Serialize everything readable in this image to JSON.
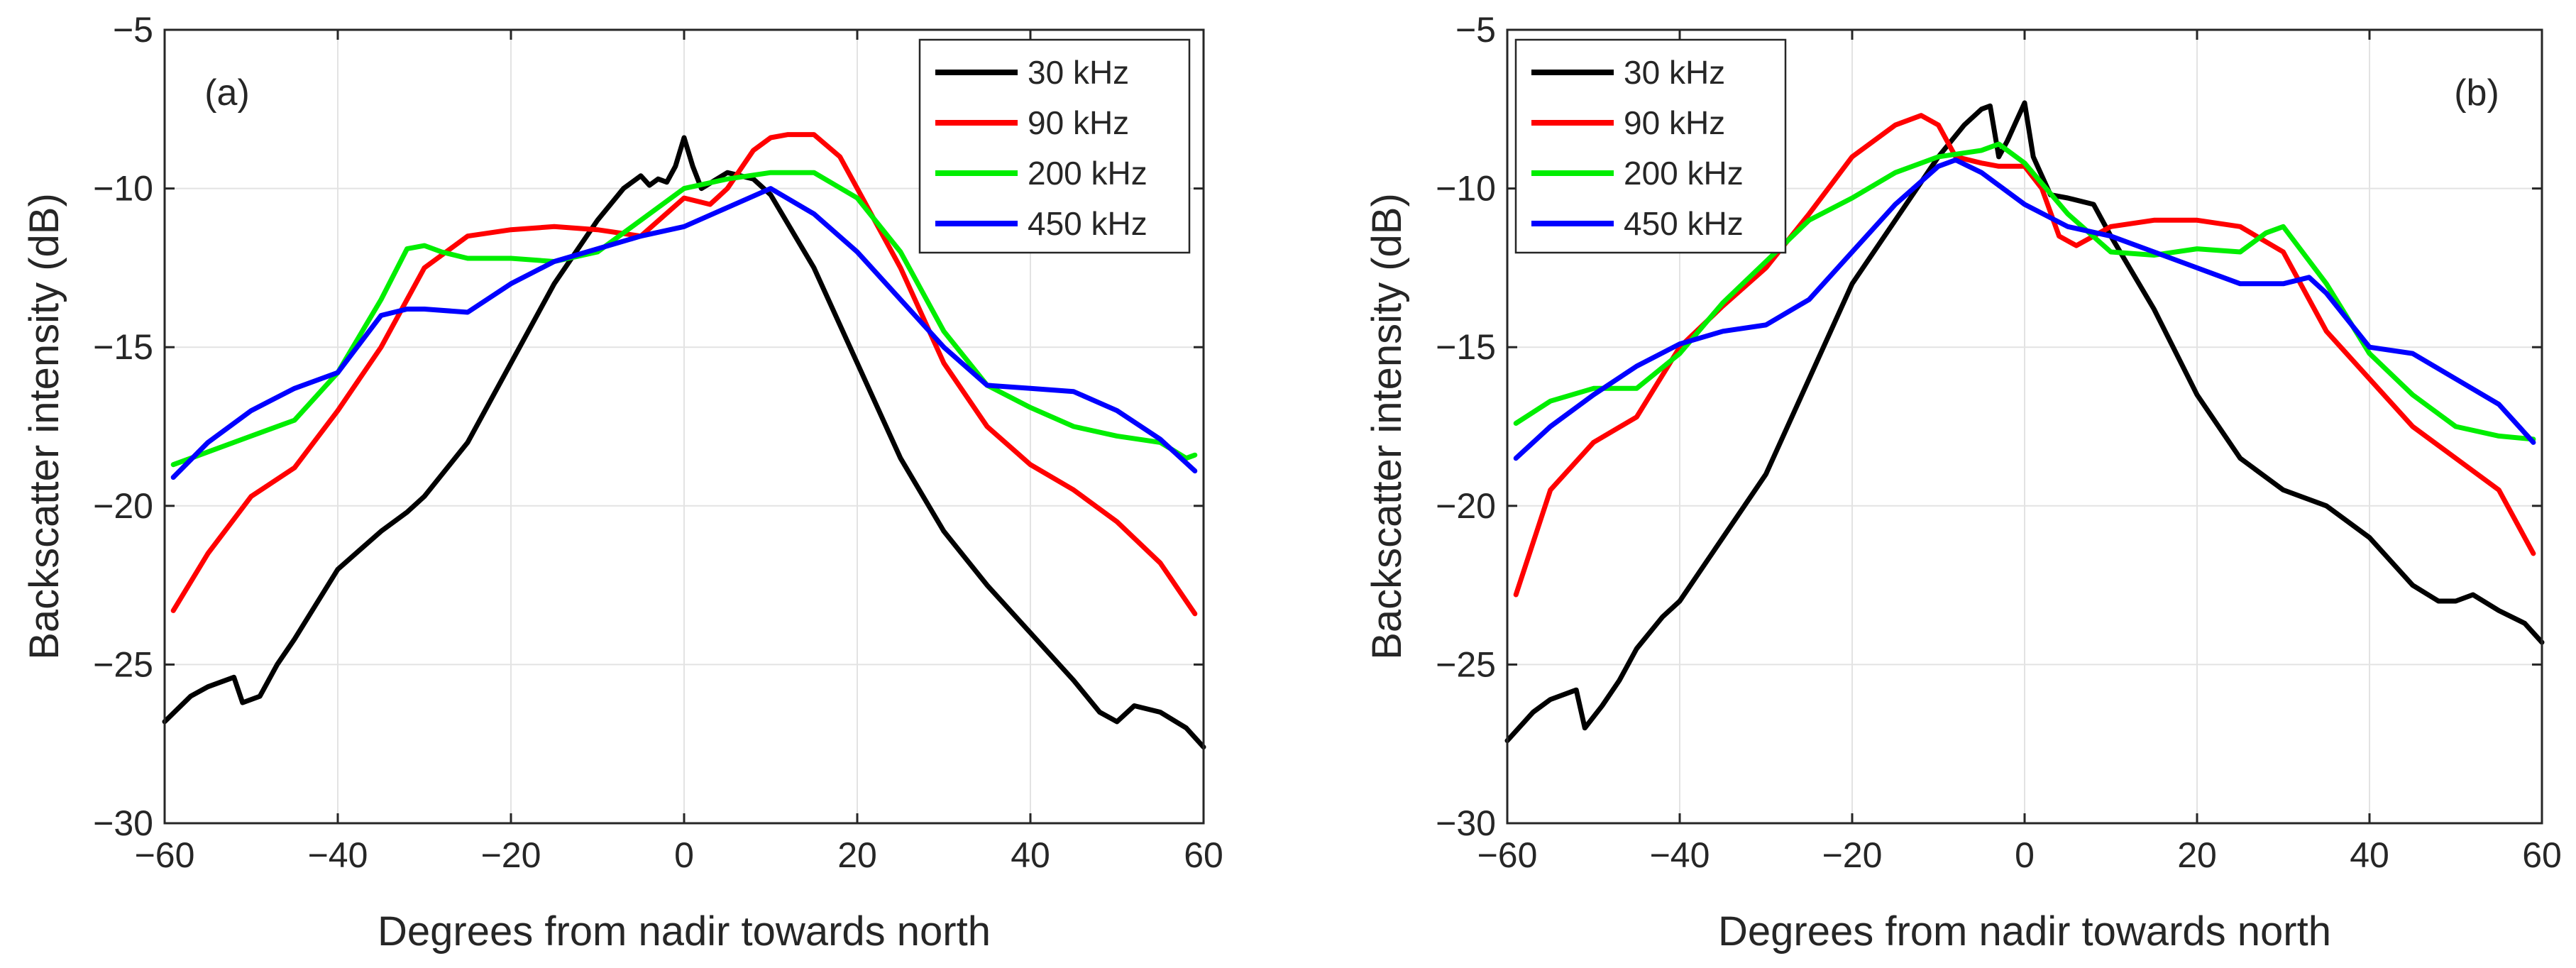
{
  "chart_data": [
    {
      "type": "line",
      "panel_label": "(a)",
      "xlabel": "Degrees from nadir towards north",
      "ylabel": "Backscatter intensity (dB)",
      "xlim": [
        -60,
        60
      ],
      "ylim": [
        -30,
        -5
      ],
      "xticks": [
        -60,
        -40,
        -20,
        0,
        20,
        40,
        60
      ],
      "yticks": [
        -30,
        -25,
        -20,
        -15,
        -10,
        -5
      ],
      "grid": true,
      "legend_position": "top-right",
      "series": [
        {
          "name": "30 kHz",
          "color": "#000000",
          "x": [
            -60,
            -57,
            -55,
            -52,
            -51,
            -49,
            -47,
            -45,
            -40,
            -35,
            -32,
            -30,
            -25,
            -20,
            -15,
            -10,
            -7,
            -5,
            -4,
            -3,
            -2,
            -1,
            0,
            1,
            2,
            5,
            8,
            10,
            15,
            20,
            25,
            30,
            35,
            40,
            45,
            48,
            50,
            52,
            55,
            58,
            60
          ],
          "y": [
            -26.8,
            -26.0,
            -25.7,
            -25.4,
            -26.2,
            -26.0,
            -25.0,
            -24.2,
            -22.0,
            -20.8,
            -20.2,
            -19.7,
            -18.0,
            -15.5,
            -13.0,
            -11.0,
            -10.0,
            -9.6,
            -9.9,
            -9.7,
            -9.8,
            -9.3,
            -8.4,
            -9.3,
            -10.0,
            -9.5,
            -9.7,
            -10.2,
            -12.5,
            -15.5,
            -18.5,
            -20.8,
            -22.5,
            -24.0,
            -25.5,
            -26.5,
            -26.8,
            -26.3,
            -26.5,
            -27.0,
            -27.6
          ]
        },
        {
          "name": "90 kHz",
          "color": "#ff0000",
          "x": [
            -59,
            -55,
            -50,
            -45,
            -40,
            -35,
            -30,
            -25,
            -20,
            -15,
            -10,
            -5,
            0,
            3,
            5,
            8,
            10,
            12,
            15,
            18,
            20,
            25,
            30,
            35,
            40,
            45,
            50,
            55,
            59
          ],
          "y": [
            -23.3,
            -21.5,
            -19.7,
            -18.8,
            -17.0,
            -15.0,
            -12.5,
            -11.5,
            -11.3,
            -11.2,
            -11.3,
            -11.5,
            -10.3,
            -10.5,
            -10.0,
            -8.8,
            -8.4,
            -8.3,
            -8.3,
            -9.0,
            -10.0,
            -12.5,
            -15.5,
            -17.5,
            -18.7,
            -19.5,
            -20.5,
            -21.8,
            -23.4
          ]
        },
        {
          "name": "200 kHz",
          "color": "#00ee00",
          "x": [
            -59,
            -55,
            -50,
            -45,
            -40,
            -35,
            -32,
            -30,
            -28,
            -25,
            -20,
            -15,
            -10,
            -5,
            0,
            5,
            10,
            15,
            20,
            25,
            30,
            35,
            40,
            45,
            50,
            55,
            58,
            59
          ],
          "y": [
            -18.7,
            -18.3,
            -17.8,
            -17.3,
            -15.8,
            -13.5,
            -11.9,
            -11.8,
            -12.0,
            -12.2,
            -12.2,
            -12.3,
            -12.0,
            -11.0,
            -10.0,
            -9.7,
            -9.5,
            -9.5,
            -10.3,
            -12.0,
            -14.5,
            -16.2,
            -16.9,
            -17.5,
            -17.8,
            -18.0,
            -18.5,
            -18.4
          ]
        },
        {
          "name": "450 kHz",
          "color": "#0000ff",
          "x": [
            -59,
            -55,
            -50,
            -45,
            -40,
            -35,
            -32,
            -30,
            -25,
            -20,
            -15,
            -10,
            -5,
            0,
            5,
            10,
            15,
            20,
            25,
            30,
            35,
            40,
            45,
            50,
            55,
            59
          ],
          "y": [
            -19.1,
            -18.0,
            -17.0,
            -16.3,
            -15.8,
            -14.0,
            -13.8,
            -13.8,
            -13.9,
            -13.0,
            -12.3,
            -11.9,
            -11.5,
            -11.2,
            -10.6,
            -10.0,
            -10.8,
            -12.0,
            -13.5,
            -15.0,
            -16.2,
            -16.3,
            -16.4,
            -17.0,
            -17.9,
            -18.9
          ]
        }
      ]
    },
    {
      "type": "line",
      "panel_label": "(b)",
      "xlabel": "Degrees from nadir towards north",
      "ylabel": "Backscatter intensity (dB)",
      "xlim": [
        -60,
        60
      ],
      "ylim": [
        -30,
        -5
      ],
      "xticks": [
        -60,
        -40,
        -20,
        0,
        20,
        40,
        60
      ],
      "yticks": [
        -30,
        -25,
        -20,
        -15,
        -10,
        -5
      ],
      "grid": true,
      "legend_position": "top-left",
      "series": [
        {
          "name": "30 kHz",
          "color": "#000000",
          "x": [
            -60,
            -57,
            -55,
            -52,
            -51,
            -49,
            -47,
            -45,
            -42,
            -40,
            -35,
            -30,
            -25,
            -20,
            -15,
            -10,
            -7,
            -5,
            -4,
            -3,
            -2,
            -1,
            0,
            1,
            3,
            5,
            8,
            10,
            15,
            20,
            25,
            30,
            35,
            40,
            45,
            48,
            50,
            52,
            55,
            58,
            60
          ],
          "y": [
            -27.4,
            -26.5,
            -26.1,
            -25.8,
            -27.0,
            -26.3,
            -25.5,
            -24.5,
            -23.5,
            -23.0,
            -21.0,
            -19.0,
            -16.0,
            -13.0,
            -11.0,
            -9.0,
            -8.0,
            -7.5,
            -7.4,
            -9.0,
            -8.5,
            -7.9,
            -7.3,
            -9.0,
            -10.2,
            -10.3,
            -10.5,
            -11.5,
            -13.8,
            -16.5,
            -18.5,
            -19.5,
            -20.0,
            -21.0,
            -22.5,
            -23.0,
            -23.0,
            -22.8,
            -23.3,
            -23.7,
            -24.3
          ]
        },
        {
          "name": "90 kHz",
          "color": "#ff0000",
          "x": [
            -59,
            -55,
            -50,
            -45,
            -40,
            -35,
            -30,
            -25,
            -20,
            -15,
            -12,
            -10,
            -8,
            -5,
            -3,
            0,
            2,
            4,
            6,
            8,
            10,
            15,
            20,
            25,
            30,
            35,
            40,
            45,
            50,
            55,
            59
          ],
          "y": [
            -22.8,
            -19.5,
            -18.0,
            -17.2,
            -15.0,
            -13.7,
            -12.5,
            -10.8,
            -9.0,
            -8.0,
            -7.7,
            -8.0,
            -9.0,
            -9.2,
            -9.3,
            -9.3,
            -10.0,
            -11.5,
            -11.8,
            -11.5,
            -11.2,
            -11.0,
            -11.0,
            -11.2,
            -12.0,
            -14.5,
            -16.0,
            -17.5,
            -18.5,
            -19.5,
            -21.5
          ]
        },
        {
          "name": "200 kHz",
          "color": "#00ee00",
          "x": [
            -59,
            -55,
            -50,
            -45,
            -40,
            -35,
            -30,
            -25,
            -20,
            -15,
            -10,
            -5,
            -3,
            0,
            5,
            10,
            15,
            20,
            25,
            28,
            30,
            35,
            40,
            45,
            50,
            55,
            59
          ],
          "y": [
            -17.4,
            -16.7,
            -16.3,
            -16.3,
            -15.2,
            -13.6,
            -12.3,
            -11.0,
            -10.3,
            -9.5,
            -9.0,
            -8.8,
            -8.6,
            -9.2,
            -10.8,
            -12.0,
            -12.1,
            -11.9,
            -12.0,
            -11.4,
            -11.2,
            -13.0,
            -15.2,
            -16.5,
            -17.5,
            -17.8,
            -17.9
          ]
        },
        {
          "name": "450 kHz",
          "color": "#0000ff",
          "x": [
            -59,
            -55,
            -50,
            -45,
            -40,
            -35,
            -30,
            -25,
            -20,
            -15,
            -10,
            -8,
            -5,
            0,
            5,
            10,
            15,
            20,
            25,
            30,
            33,
            35,
            40,
            45,
            50,
            55,
            59
          ],
          "y": [
            -18.5,
            -17.5,
            -16.5,
            -15.6,
            -14.9,
            -14.5,
            -14.3,
            -13.5,
            -12.0,
            -10.5,
            -9.3,
            -9.1,
            -9.5,
            -10.5,
            -11.2,
            -11.5,
            -12.0,
            -12.5,
            -13.0,
            -13.0,
            -12.8,
            -13.3,
            -15.0,
            -15.2,
            -16.0,
            -16.8,
            -18.0
          ]
        }
      ]
    }
  ]
}
